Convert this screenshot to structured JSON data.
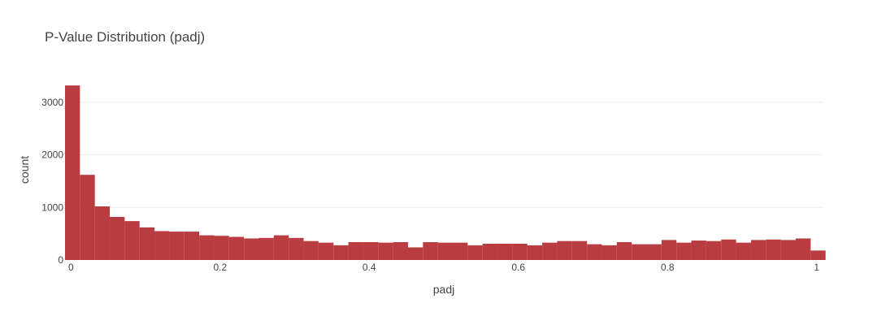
{
  "chart_data": {
    "type": "bar",
    "title": "P-Value Distribution (padj)",
    "xlabel": "padj",
    "ylabel": "count",
    "xlim": [
      -0.008,
      1.008
    ],
    "ylim": [
      0,
      3400
    ],
    "xticks": [
      {
        "value": 0,
        "label": "0"
      },
      {
        "value": 0.2,
        "label": "0.2"
      },
      {
        "value": 0.4,
        "label": "0.4"
      },
      {
        "value": 0.6,
        "label": "0.6"
      },
      {
        "value": 0.8,
        "label": "0.8"
      },
      {
        "value": 1,
        "label": "1"
      }
    ],
    "yticks": [
      {
        "value": 0,
        "label": "0"
      },
      {
        "value": 1000,
        "label": "1000"
      },
      {
        "value": 2000,
        "label": "2000"
      },
      {
        "value": 3000,
        "label": "3000"
      }
    ],
    "grid": true,
    "bar_color": "#b83c40",
    "bin_width": 0.02,
    "bin_start": -0.008,
    "values": [
      3320,
      1620,
      1020,
      820,
      740,
      620,
      550,
      540,
      540,
      470,
      460,
      440,
      410,
      420,
      470,
      420,
      360,
      330,
      280,
      340,
      340,
      330,
      340,
      240,
      340,
      330,
      330,
      280,
      310,
      310,
      310,
      280,
      330,
      360,
      360,
      300,
      280,
      340,
      300,
      300,
      380,
      330,
      370,
      360,
      390,
      330,
      380,
      390,
      380,
      410,
      180
    ]
  }
}
